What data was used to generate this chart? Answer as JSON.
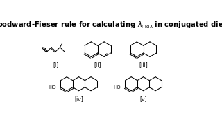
{
  "title": "Woodward-Fieser rule for calculating $\\lambda_{\\mathrm{max}}$ in conjugated dienes",
  "title_fontsize": 7.2,
  "title_fontweight": "bold",
  "background_color": "#ffffff",
  "text_color": "#000000",
  "labels": [
    "[i]",
    "[ii]",
    "[iii]",
    "[iv]",
    "[v]"
  ],
  "label_fontsize": 5.5,
  "lw": 0.75
}
